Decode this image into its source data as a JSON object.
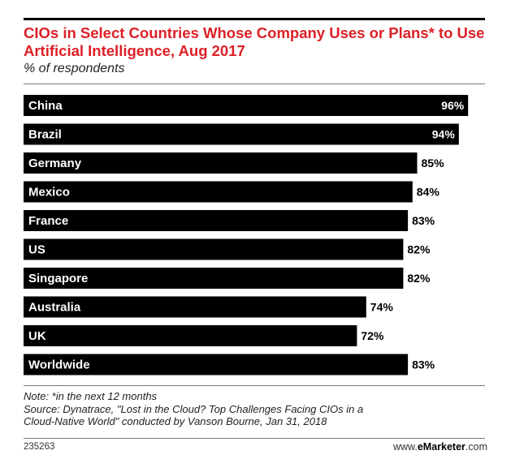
{
  "chart_data": {
    "type": "bar",
    "orientation": "horizontal",
    "title": "CIOs in Select Countries Whose Company Uses or Plans* to Use Artificial Intelligence, Aug 2017",
    "subtitle": "% of respondents",
    "categories": [
      "China",
      "Brazil",
      "Germany",
      "Mexico",
      "France",
      "US",
      "Singapore",
      "Australia",
      "UK",
      "Worldwide"
    ],
    "values": [
      96,
      94,
      85,
      84,
      83,
      82,
      82,
      74,
      72,
      83
    ],
    "value_labels": [
      "96%",
      "94%",
      "85%",
      "84%",
      "83%",
      "82%",
      "82%",
      "74%",
      "72%",
      "83%"
    ],
    "xlim": [
      0,
      100
    ],
    "grid": false,
    "bar_color": "#000000"
  },
  "footer": {
    "note": "Note: *in the next 12 months",
    "source_line1": "Source: Dynatrace, \"Lost in the Cloud? Top Challenges Facing CIOs in a",
    "source_line2": "Cloud-Native World\" conducted by Vanson Bourne, Jan 31, 2018",
    "chart_id": "235263",
    "brand_prefix": "www.",
    "brand_bold": "eMarketer",
    "brand_suffix": ".com"
  },
  "colors": {
    "title": "#dd1f26",
    "bar": "#000000",
    "bar_label": "#ffffff",
    "value_outside": "#000000"
  }
}
